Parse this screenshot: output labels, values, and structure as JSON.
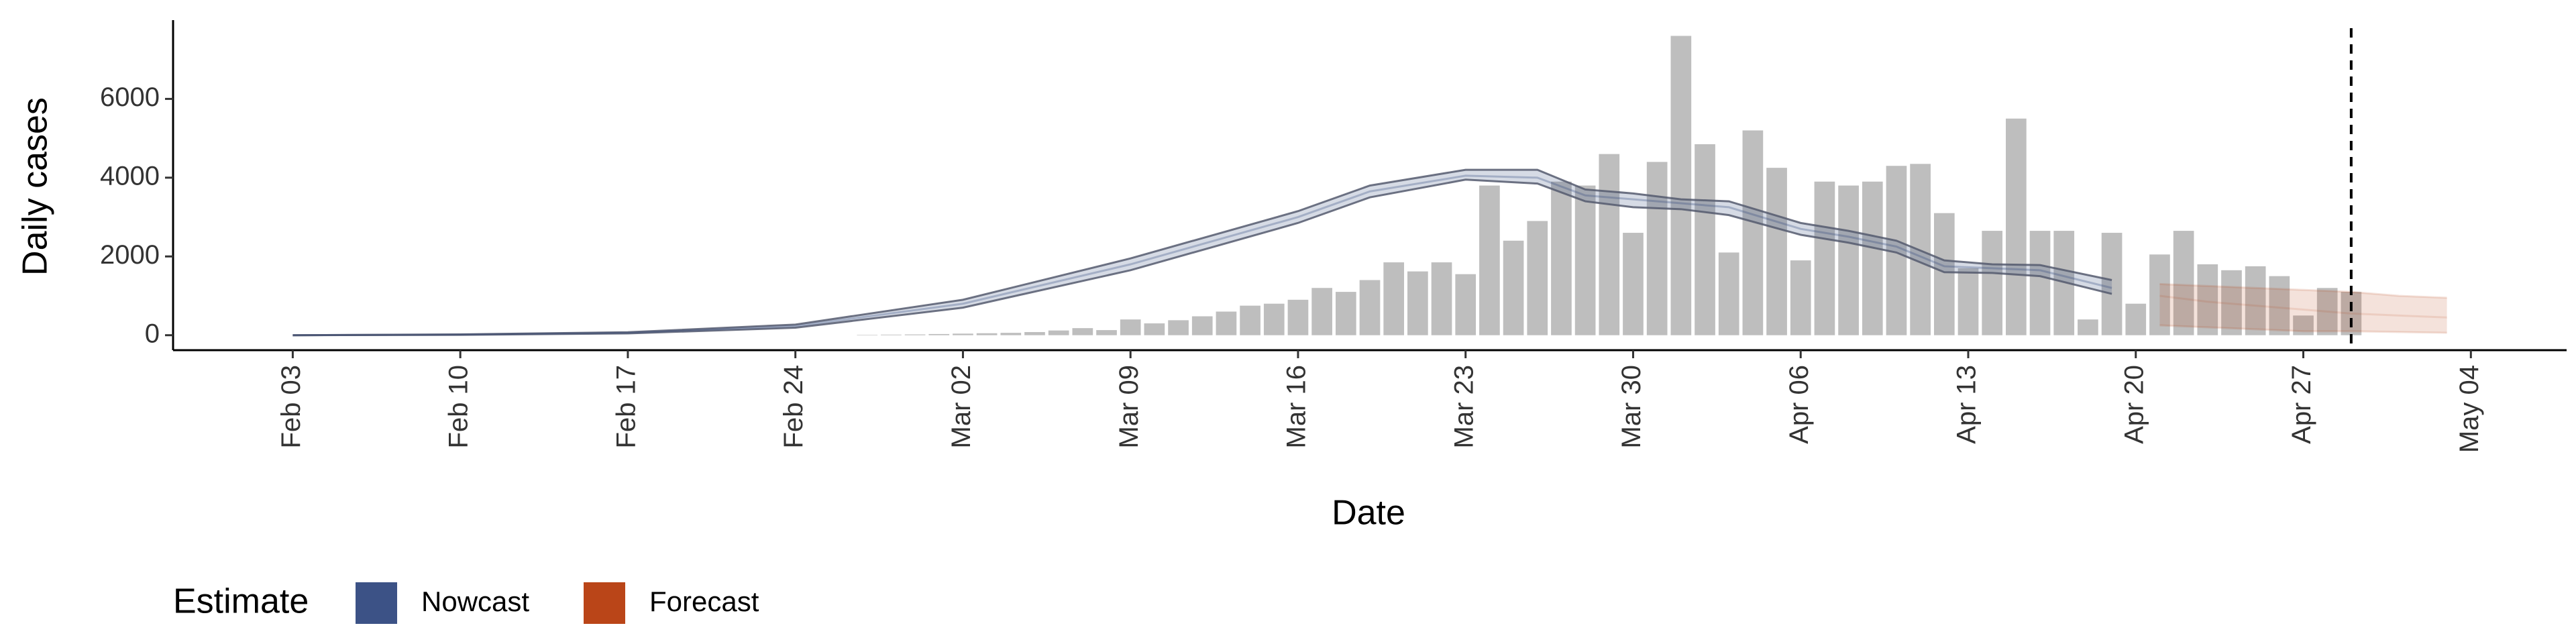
{
  "chart_data": {
    "type": "bar-line",
    "x_title": "Date",
    "y_title": "Daily cases",
    "xlim": [
      "Jan 29",
      "May 08"
    ],
    "xticks": [
      "Feb 03",
      "Feb 10",
      "Feb 17",
      "Feb 24",
      "Mar 02",
      "Mar 09",
      "Mar 16",
      "Mar 23",
      "Mar 30",
      "Apr 06",
      "Apr 13",
      "Apr 20",
      "Apr 27",
      "May 04"
    ],
    "ylim": [
      -380,
      8000
    ],
    "yticks": [
      0,
      2000,
      4000,
      6000
    ],
    "bars": {
      "color": "#bebebe",
      "x": [
        "Feb 27",
        "Feb 28",
        "Feb 29",
        "Mar 01",
        "Mar 02",
        "Mar 03",
        "Mar 04",
        "Mar 05",
        "Mar 06",
        "Mar 07",
        "Mar 08",
        "Mar 09",
        "Mar 10",
        "Mar 11",
        "Mar 12",
        "Mar 13",
        "Mar 14",
        "Mar 15",
        "Mar 16",
        "Mar 17",
        "Mar 18",
        "Mar 19",
        "Mar 20",
        "Mar 21",
        "Mar 22",
        "Mar 23",
        "Mar 24",
        "Mar 25",
        "Mar 26",
        "Mar 27",
        "Mar 28",
        "Mar 29",
        "Mar 30",
        "Mar 31",
        "Apr 01",
        "Apr 02",
        "Apr 03",
        "Apr 04",
        "Apr 05",
        "Apr 06",
        "Apr 07",
        "Apr 08",
        "Apr 09",
        "Apr 10",
        "Apr 11",
        "Apr 12",
        "Apr 13",
        "Apr 14",
        "Apr 15",
        "Apr 16",
        "Apr 17",
        "Apr 18",
        "Apr 19",
        "Apr 20",
        "Apr 21",
        "Apr 22",
        "Apr 23",
        "Apr 24",
        "Apr 25",
        "Apr 26",
        "Apr 27",
        "Apr 28",
        "Apr 29"
      ],
      "values": [
        10,
        15,
        20,
        30,
        40,
        50,
        60,
        80,
        120,
        180,
        130,
        400,
        300,
        380,
        480,
        600,
        750,
        800,
        900,
        1200,
        1100,
        1400,
        1850,
        1620,
        1850,
        1550,
        3800,
        2400,
        2900,
        3900,
        3800,
        4600,
        2600,
        4400,
        7600,
        4850,
        2100,
        5200,
        4250,
        1900,
        3900,
        3800,
        3900,
        4300,
        4350,
        3100,
        1700,
        2650,
        5500,
        2650,
        2650,
        400,
        2600,
        800,
        2050,
        2650,
        1800,
        1650,
        1750,
        1500,
        500,
        1200,
        1100
      ]
    },
    "legend_title": "Estimate",
    "series": [
      {
        "name": "Nowcast",
        "color": "#32497f",
        "x": [
          "Feb 03",
          "Feb 10",
          "Feb 17",
          "Feb 24",
          "Mar 02",
          "Mar 09",
          "Mar 16",
          "Mar 19",
          "Mar 23",
          "Mar 26",
          "Mar 28",
          "Mar 30",
          "Apr 01",
          "Apr 03",
          "Apr 06",
          "Apr 08",
          "Apr 10",
          "Apr 12",
          "Apr 14",
          "Apr 16",
          "Apr 19"
        ],
        "values": [
          0,
          15,
          60,
          230,
          800,
          1800,
          3000,
          3650,
          4050,
          4000,
          3550,
          3450,
          3350,
          3250,
          2700,
          2500,
          2250,
          1750,
          1700,
          1650,
          1200
        ],
        "lower": [
          0,
          10,
          45,
          190,
          700,
          1650,
          2850,
          3500,
          3950,
          3850,
          3400,
          3250,
          3200,
          3050,
          2550,
          2350,
          2100,
          1600,
          1580,
          1500,
          1050
        ],
        "upper": [
          0,
          20,
          75,
          270,
          900,
          1950,
          3150,
          3800,
          4200,
          4200,
          3700,
          3600,
          3450,
          3400,
          2850,
          2650,
          2400,
          1900,
          1800,
          1780,
          1400
        ]
      },
      {
        "name": "Forecast",
        "color": "#b63b0c",
        "x": [
          "Apr 21",
          "Apr 23",
          "Apr 25",
          "Apr 27",
          "Apr 29",
          "May 01",
          "May 03"
        ],
        "values": [
          1000,
          850,
          750,
          650,
          550,
          500,
          450
        ],
        "lower": [
          250,
          200,
          150,
          100,
          100,
          80,
          60
        ],
        "upper": [
          1300,
          1250,
          1200,
          1150,
          1100,
          1000,
          950
        ]
      }
    ],
    "vline": "Apr 29"
  }
}
